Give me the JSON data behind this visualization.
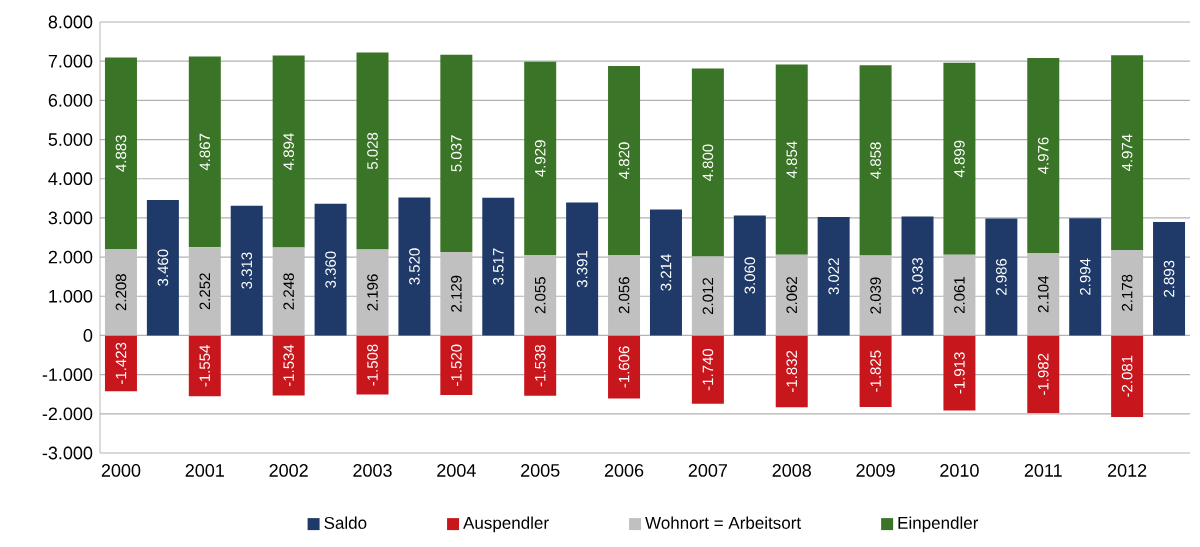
{
  "chart_data": {
    "type": "bar",
    "stacked": true,
    "categories": [
      "2000",
      null,
      "2001",
      null,
      "2002",
      null,
      "2003",
      null,
      "2004",
      null,
      "2005",
      null,
      "2006",
      null,
      "2007",
      null,
      "2008",
      null,
      "2009",
      null,
      "2010",
      null,
      "2011",
      null,
      "2012",
      null
    ],
    "series": [
      {
        "name": "Saldo",
        "color": "#1f3a68",
        "values": [
          null,
          3460,
          null,
          3313,
          null,
          3360,
          null,
          3520,
          null,
          3517,
          null,
          3391,
          null,
          3214,
          null,
          3060,
          null,
          3022,
          null,
          3033,
          null,
          2986,
          null,
          2994,
          null,
          2893
        ],
        "value_labels": [
          null,
          "3.460",
          null,
          "3.313",
          null,
          "3.360",
          null,
          "3.520",
          null,
          "3.517",
          null,
          "3.391",
          null,
          "3.214",
          null,
          "3.060",
          null,
          "3.022",
          null,
          "3.033",
          null,
          "2.986",
          null,
          "2.994",
          null,
          "2.893"
        ]
      },
      {
        "name": "Auspendler",
        "color": "#c8161d",
        "values": [
          -1423,
          null,
          -1554,
          null,
          -1534,
          null,
          -1508,
          null,
          -1520,
          null,
          -1538,
          null,
          -1606,
          null,
          -1740,
          null,
          -1832,
          null,
          -1825,
          null,
          -1913,
          null,
          -1982,
          null,
          -2081,
          null
        ],
        "value_labels": [
          "-1.423",
          null,
          "-1.554",
          null,
          "-1.534",
          null,
          "-1.508",
          null,
          "-1.520",
          null,
          "-1.538",
          null,
          "-1.606",
          null,
          "-1.740",
          null,
          "-1.832",
          null,
          "-1.825",
          null,
          "-1.913",
          null,
          "-1.982",
          null,
          "-2.081",
          null
        ]
      },
      {
        "name": "Wohnort = Arbeitsort",
        "color": "#c0c0c0",
        "values": [
          2208,
          null,
          2252,
          null,
          2248,
          null,
          2196,
          null,
          2129,
          null,
          2055,
          null,
          2056,
          null,
          2012,
          null,
          2062,
          null,
          2039,
          null,
          2061,
          null,
          2104,
          null,
          2178,
          null
        ],
        "value_labels": [
          "2.208",
          null,
          "2.252",
          null,
          "2.248",
          null,
          "2.196",
          null,
          "2.129",
          null,
          "2.055",
          null,
          "2.056",
          null,
          "2.012",
          null,
          "2.062",
          null,
          "2.039",
          null,
          "2.061",
          null,
          "2.104",
          null,
          "2.178",
          null
        ]
      },
      {
        "name": "Einpendler",
        "color": "#3a7426",
        "values": [
          4883,
          null,
          4867,
          null,
          4894,
          null,
          5028,
          null,
          5037,
          null,
          4929,
          null,
          4820,
          null,
          4800,
          null,
          4854,
          null,
          4858,
          null,
          4899,
          null,
          4976,
          null,
          4974,
          null
        ],
        "value_labels": [
          "4.883",
          null,
          "4.867",
          null,
          "4.894",
          null,
          "5.028",
          null,
          "5.037",
          null,
          "4.929",
          null,
          "4.820",
          null,
          "4.800",
          null,
          "4.854",
          null,
          "4.858",
          null,
          "4.899",
          null,
          "4.976",
          null,
          "4.974",
          null
        ]
      }
    ],
    "ylim": [
      -3000,
      8000
    ],
    "yticks": [
      {
        "value": -3000,
        "label": "-3.000"
      },
      {
        "value": -2000,
        "label": "-2.000"
      },
      {
        "value": -1000,
        "label": "-1.000"
      },
      0,
      {
        "value": 1000,
        "label": "1.000"
      },
      {
        "value": 2000,
        "label": "2.000"
      },
      {
        "value": 3000,
        "label": "3.000"
      },
      {
        "value": 4000,
        "label": "4.000"
      },
      {
        "value": 5000,
        "label": "5.000"
      },
      {
        "value": 6000,
        "label": "6.000"
      },
      {
        "value": 7000,
        "label": "7.000"
      },
      {
        "value": 8000,
        "label": "8.000"
      }
    ],
    "grid": "y",
    "legend": "bottom"
  }
}
